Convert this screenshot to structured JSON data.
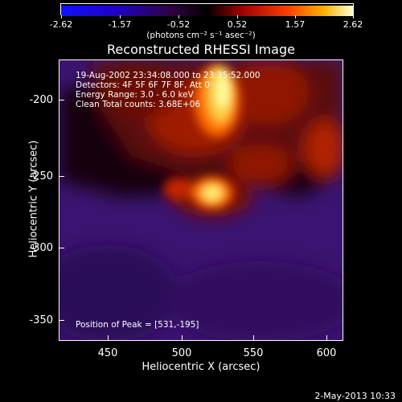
{
  "colorbar": {
    "ticks": [
      "-2.62",
      "-1.57",
      "-0.52",
      "0.52",
      "1.57",
      "2.62"
    ]
  },
  "units_label": "(photons cm⁻² s⁻¹ asec⁻²)",
  "title": "Reconstructed RHESSI Image",
  "info": {
    "time": "19-Aug-2002 23:34:08.000 to 23:35:52.000",
    "detectors": "Detectors: 4F 5F 6F 7F 8F, Att 0",
    "energy": "Energy Range: 3.0 - 6.0 keV",
    "clean": "Clean    Total counts: 3.68E+06"
  },
  "peak_text": "Position of Peak = [531,-195]",
  "axes": {
    "xlabel": "Heliocentric X (arcsec)",
    "ylabel": "Heliocentric Y (arcsec)",
    "xticks": [
      "450",
      "500",
      "550",
      "600"
    ],
    "yticks": [
      "-200",
      "-250",
      "-300",
      "-350"
    ]
  },
  "footer_date": "2-May-2013 10:33",
  "colors": {
    "background": "#000000",
    "foreground": "#ffffff"
  }
}
